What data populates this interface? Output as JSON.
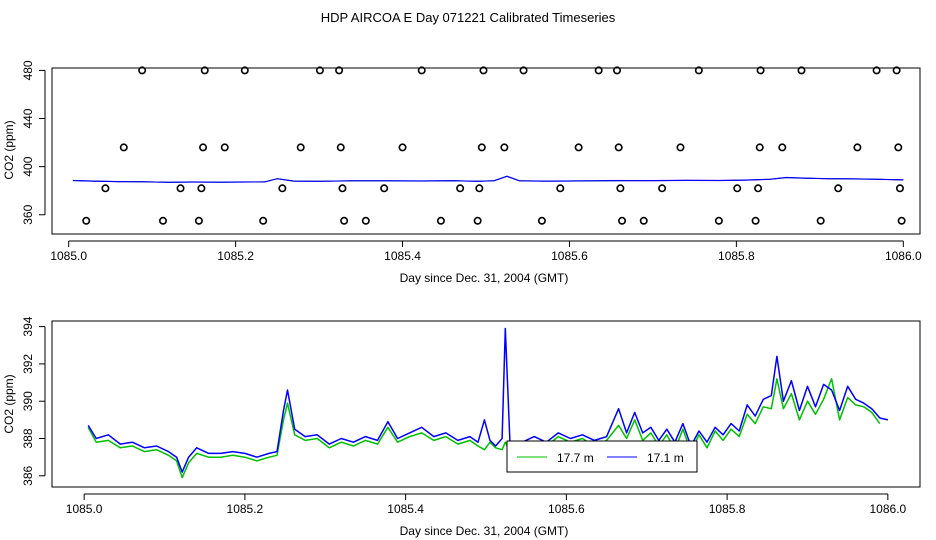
{
  "title": "HDP AIRCOA E  Day 071221  Calibrated Timeseries",
  "colors": {
    "series_a": "#00c000",
    "series_b": "#0000ff",
    "ink": "#000000"
  },
  "chart_data": [
    {
      "type": "scatter",
      "xlabel": "Day since Dec. 31, 2004 (GMT)",
      "ylabel": "CO2 (ppm)",
      "xlim": [
        1084.98,
        1086.02
      ],
      "ylim": [
        344,
        482
      ],
      "x_ticks": [
        1085.0,
        1085.2,
        1085.4,
        1085.6,
        1085.8,
        1086.0
      ],
      "x_tick_labels": [
        "1085.0",
        "1085.2",
        "1085.4",
        "1085.6",
        "1085.8",
        "1086.0"
      ],
      "y_ticks": [
        360,
        400,
        440,
        480
      ],
      "y_tick_labels": [
        "360",
        "400",
        "440",
        "480"
      ],
      "markers": [
        [
          1085.088,
          480
        ],
        [
          1085.163,
          480
        ],
        [
          1085.211,
          480
        ],
        [
          1085.301,
          480
        ],
        [
          1085.324,
          480
        ],
        [
          1085.423,
          480
        ],
        [
          1085.497,
          480
        ],
        [
          1085.545,
          480
        ],
        [
          1085.635,
          480
        ],
        [
          1085.657,
          480
        ],
        [
          1085.755,
          480
        ],
        [
          1085.829,
          480
        ],
        [
          1085.878,
          480
        ],
        [
          1085.968,
          480
        ],
        [
          1085.992,
          480
        ],
        [
          1085.066,
          416
        ],
        [
          1085.161,
          416
        ],
        [
          1085.187,
          416
        ],
        [
          1085.278,
          416
        ],
        [
          1085.326,
          416
        ],
        [
          1085.4,
          416
        ],
        [
          1085.495,
          416
        ],
        [
          1085.522,
          416
        ],
        [
          1085.611,
          416
        ],
        [
          1085.659,
          416
        ],
        [
          1085.733,
          416
        ],
        [
          1085.828,
          416
        ],
        [
          1085.855,
          416
        ],
        [
          1085.945,
          416
        ],
        [
          1085.994,
          416
        ],
        [
          1085.044,
          382
        ],
        [
          1085.134,
          382
        ],
        [
          1085.159,
          382
        ],
        [
          1085.256,
          382
        ],
        [
          1085.328,
          382
        ],
        [
          1085.378,
          382
        ],
        [
          1085.469,
          382
        ],
        [
          1085.492,
          382
        ],
        [
          1085.589,
          382
        ],
        [
          1085.661,
          382
        ],
        [
          1085.711,
          382
        ],
        [
          1085.801,
          382
        ],
        [
          1085.826,
          382
        ],
        [
          1085.922,
          382
        ],
        [
          1085.996,
          382
        ],
        [
          1085.021,
          355
        ],
        [
          1085.113,
          355
        ],
        [
          1085.156,
          355
        ],
        [
          1085.233,
          355
        ],
        [
          1085.33,
          355
        ],
        [
          1085.356,
          355
        ],
        [
          1085.446,
          355
        ],
        [
          1085.49,
          355
        ],
        [
          1085.567,
          355
        ],
        [
          1085.663,
          355
        ],
        [
          1085.689,
          355
        ],
        [
          1085.779,
          355
        ],
        [
          1085.823,
          355
        ],
        [
          1085.901,
          355
        ],
        [
          1085.998,
          355
        ]
      ],
      "line": {
        "x": [
          1085.005,
          1085.03,
          1085.06,
          1085.09,
          1085.12,
          1085.15,
          1085.18,
          1085.21,
          1085.235,
          1085.25,
          1085.27,
          1085.3,
          1085.34,
          1085.38,
          1085.42,
          1085.46,
          1085.49,
          1085.51,
          1085.525,
          1085.54,
          1085.57,
          1085.6,
          1085.63,
          1085.66,
          1085.7,
          1085.74,
          1085.78,
          1085.81,
          1085.84,
          1085.86,
          1085.88,
          1085.91,
          1085.94,
          1085.97,
          1086.0
        ],
        "values": [
          388.5,
          388,
          387.6,
          387.4,
          387,
          387.2,
          387.1,
          387.2,
          387.3,
          390,
          388,
          387.8,
          388.2,
          388.2,
          388.1,
          388.3,
          387.8,
          388.3,
          392,
          388.2,
          388,
          388.1,
          388.2,
          388.4,
          388.4,
          388.6,
          388.5,
          388.8,
          389.5,
          391,
          390.5,
          390,
          389.8,
          389.5,
          389
        ]
      }
    },
    {
      "type": "line",
      "xlabel": "Day since Dec. 31, 2004 (GMT)",
      "ylabel": "CO2 (ppm)",
      "xlim": [
        1084.96,
        1086.04
      ],
      "ylim": [
        385.4,
        394.3
      ],
      "x_ticks": [
        1085.0,
        1085.2,
        1085.4,
        1085.6,
        1085.8,
        1086.0
      ],
      "x_tick_labels": [
        "1085.0",
        "1085.2",
        "1085.4",
        "1085.6",
        "1085.8",
        "1086.0"
      ],
      "y_ticks": [
        386,
        388,
        390,
        392,
        394
      ],
      "y_tick_labels": [
        "386",
        "388",
        "390",
        "392",
        "394"
      ],
      "legend": {
        "placement": "bottom-center"
      },
      "series": [
        {
          "name": "17.7 m",
          "x": [
            1085.005,
            1085.015,
            1085.03,
            1085.045,
            1085.06,
            1085.075,
            1085.09,
            1085.105,
            1085.115,
            1085.122,
            1085.13,
            1085.14,
            1085.155,
            1085.17,
            1085.185,
            1085.2,
            1085.215,
            1085.23,
            1085.24,
            1085.248,
            1085.253,
            1085.262,
            1085.275,
            1085.29,
            1085.305,
            1085.32,
            1085.335,
            1085.35,
            1085.365,
            1085.378,
            1085.39,
            1085.405,
            1085.42,
            1085.435,
            1085.45,
            1085.465,
            1085.48,
            1085.49,
            1085.498,
            1085.505,
            1085.512,
            1085.52,
            1085.524,
            1085.53,
            1085.545,
            1085.56,
            1085.575,
            1085.59,
            1085.605,
            1085.62,
            1085.635,
            1085.65,
            1085.665,
            1085.675,
            1085.685,
            1085.695,
            1085.705,
            1085.715,
            1085.725,
            1085.735,
            1085.745,
            1085.755,
            1085.765,
            1085.775,
            1085.785,
            1085.795,
            1085.805,
            1085.815,
            1085.825,
            1085.835,
            1085.845,
            1085.855,
            1085.862,
            1085.87,
            1085.88,
            1085.89,
            1085.9,
            1085.91,
            1085.92,
            1085.93,
            1085.94,
            1085.95,
            1085.96,
            1085.97,
            1085.98,
            1085.99
          ],
          "values": [
            388.6,
            387.8,
            387.9,
            387.5,
            387.6,
            387.3,
            387.4,
            387.1,
            386.8,
            385.9,
            386.7,
            387.2,
            387.0,
            387.0,
            387.1,
            387.0,
            386.8,
            387.0,
            387.1,
            389.0,
            389.9,
            388.2,
            387.9,
            388.0,
            387.5,
            387.8,
            387.6,
            387.9,
            387.7,
            388.6,
            387.8,
            388.1,
            388.3,
            387.9,
            388.1,
            387.7,
            387.9,
            387.6,
            387.4,
            387.8,
            387.5,
            387.4,
            387.8,
            387.3,
            387.5,
            387.8,
            387.6,
            388.1,
            387.8,
            388.0,
            387.6,
            387.9,
            388.7,
            388.0,
            389.0,
            387.9,
            388.3,
            387.6,
            388.2,
            387.4,
            388.5,
            387.3,
            388.2,
            387.5,
            388.4,
            387.9,
            388.5,
            388.1,
            389.3,
            388.8,
            389.7,
            389.6,
            391.2,
            389.6,
            390.4,
            389.0,
            390.0,
            389.3,
            390.1,
            391.2,
            389.0,
            390.2,
            389.8,
            389.7,
            389.4,
            388.8
          ]
        },
        {
          "name": "17.1 m",
          "x": [
            1085.005,
            1085.015,
            1085.03,
            1085.045,
            1085.06,
            1085.075,
            1085.09,
            1085.105,
            1085.115,
            1085.122,
            1085.13,
            1085.14,
            1085.155,
            1085.17,
            1085.185,
            1085.2,
            1085.215,
            1085.23,
            1085.24,
            1085.248,
            1085.253,
            1085.262,
            1085.275,
            1085.29,
            1085.305,
            1085.32,
            1085.335,
            1085.35,
            1085.365,
            1085.378,
            1085.39,
            1085.405,
            1085.42,
            1085.435,
            1085.45,
            1085.465,
            1085.48,
            1085.49,
            1085.498,
            1085.505,
            1085.512,
            1085.52,
            1085.524,
            1085.53,
            1085.545,
            1085.56,
            1085.575,
            1085.59,
            1085.605,
            1085.62,
            1085.635,
            1085.65,
            1085.665,
            1085.675,
            1085.685,
            1085.695,
            1085.705,
            1085.715,
            1085.725,
            1085.735,
            1085.745,
            1085.755,
            1085.765,
            1085.775,
            1085.785,
            1085.795,
            1085.805,
            1085.815,
            1085.825,
            1085.835,
            1085.845,
            1085.855,
            1085.862,
            1085.87,
            1085.88,
            1085.89,
            1085.9,
            1085.91,
            1085.92,
            1085.93,
            1085.94,
            1085.95,
            1085.96,
            1085.97,
            1085.98,
            1085.99,
            1086.0
          ],
          "values": [
            388.7,
            388.0,
            388.2,
            387.7,
            387.8,
            387.5,
            387.6,
            387.3,
            387.0,
            386.2,
            387.0,
            387.5,
            387.2,
            387.2,
            387.3,
            387.2,
            387.0,
            387.2,
            387.3,
            389.5,
            390.6,
            388.5,
            388.1,
            388.2,
            387.7,
            388.0,
            387.8,
            388.1,
            387.9,
            388.9,
            388.0,
            388.3,
            388.6,
            388.1,
            388.3,
            387.9,
            388.1,
            387.8,
            389.0,
            387.9,
            387.6,
            388.0,
            393.9,
            387.6,
            387.8,
            388.1,
            387.8,
            388.3,
            388.0,
            388.2,
            387.9,
            388.1,
            389.6,
            388.3,
            389.4,
            388.3,
            388.6,
            387.9,
            388.5,
            387.8,
            388.8,
            387.6,
            388.4,
            387.8,
            388.6,
            388.2,
            388.8,
            388.4,
            389.8,
            389.2,
            390.1,
            390.3,
            392.4,
            390.0,
            391.1,
            389.5,
            390.8,
            389.7,
            390.9,
            390.6,
            389.5,
            390.8,
            390.1,
            389.9,
            389.6,
            389.1,
            389.0
          ]
        }
      ]
    }
  ]
}
